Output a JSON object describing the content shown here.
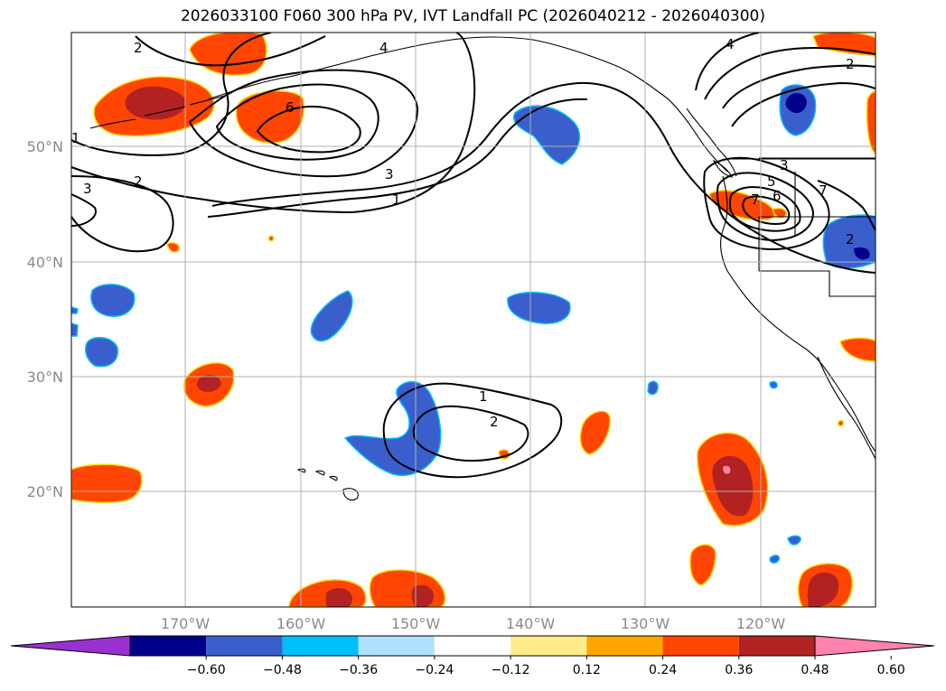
{
  "title": "2026033100 F060 300 hPa PV, IVT Landfall PC (2026040212 - 2026040300)",
  "lat_labels": [
    "50°N",
    "40°N",
    "30°N",
    "20°N"
  ],
  "lon_labels": [
    "170°W",
    "160°W",
    "150°W",
    "140°W",
    "130°W",
    "120°W"
  ],
  "colorbar": {
    "colors": [
      "#9b30d0",
      "#00008b",
      "#3a5fcd",
      "#00bfff",
      "#b0e2ff",
      "#ffffff",
      "#ffec8b",
      "#ffa500",
      "#ff4500",
      "#b22222",
      "#ff82ab"
    ],
    "tick_labels": [
      "−0.60",
      "−0.48",
      "−0.36",
      "−0.24",
      "−0.12",
      "0.12",
      "0.24",
      "0.36",
      "0.48",
      "0.60"
    ]
  },
  "contour_labels": [
    "2",
    "4",
    "1",
    "6",
    "3",
    "1",
    "3",
    "2",
    "4",
    "2",
    "3",
    "5",
    "6",
    "7",
    "7",
    "2",
    "1",
    "2"
  ],
  "colors": {
    "warm_orange": "#ff4500",
    "warm_dark": "#b22222",
    "cool_blue": "#3a5fcd",
    "cool_dark": "#00008b",
    "grid": "#b0b0b0"
  }
}
